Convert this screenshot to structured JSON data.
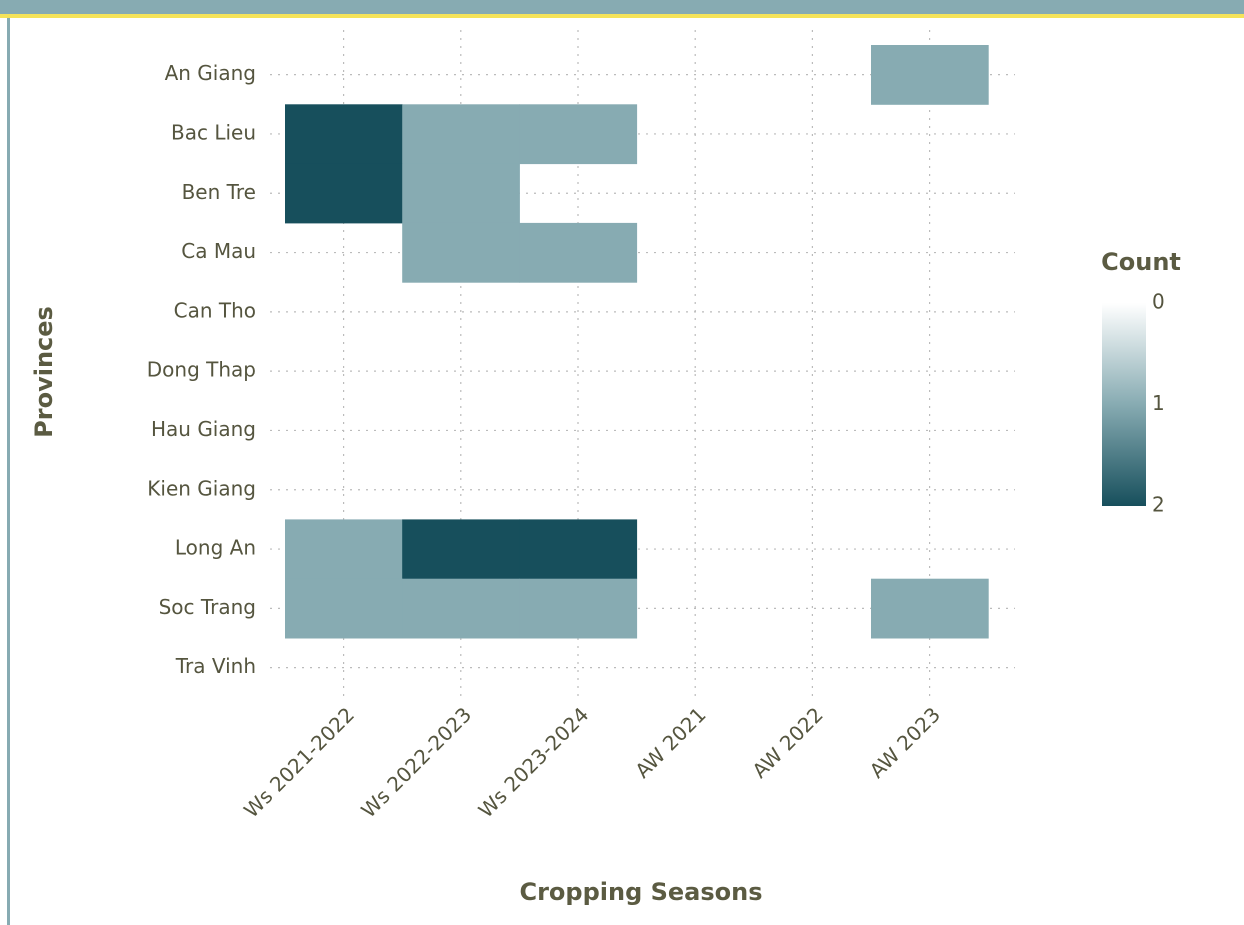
{
  "chart_data": {
    "type": "heatmap",
    "xlabel": "Cropping Seasons",
    "ylabel": "Provinces",
    "x": [
      "Ws 2021-2022",
      "Ws 2022-2023",
      "Ws 2023-2024",
      "AW 2021",
      "AW 2022",
      "AW 2023"
    ],
    "y": [
      "An Giang",
      "Bac Lieu",
      "Ben Tre",
      "Ca Mau",
      "Can Tho",
      "Dong Thap",
      "Hau Giang",
      "Kien Giang",
      "Long An",
      "Soc Trang",
      "Tra Vinh"
    ],
    "z": [
      [
        null,
        null,
        null,
        null,
        null,
        1
      ],
      [
        2,
        1,
        1,
        null,
        null,
        null
      ],
      [
        2,
        1,
        null,
        null,
        null,
        null
      ],
      [
        null,
        1,
        1,
        null,
        null,
        null
      ],
      [
        null,
        null,
        null,
        null,
        null,
        null
      ],
      [
        null,
        null,
        null,
        null,
        null,
        null
      ],
      [
        null,
        null,
        null,
        null,
        null,
        null
      ],
      [
        null,
        null,
        null,
        null,
        null,
        null
      ],
      [
        1,
        2,
        2,
        null,
        null,
        null
      ],
      [
        1,
        1,
        1,
        null,
        null,
        1
      ],
      [
        null,
        null,
        null,
        null,
        null,
        null
      ]
    ],
    "colorbar_title": "Count",
    "zlim": [
      0,
      2
    ],
    "zticks": [
      0,
      1,
      2
    ],
    "colorscale": [
      "#ffffff",
      "#87abb2",
      "#174f5c"
    ],
    "grid": true
  }
}
